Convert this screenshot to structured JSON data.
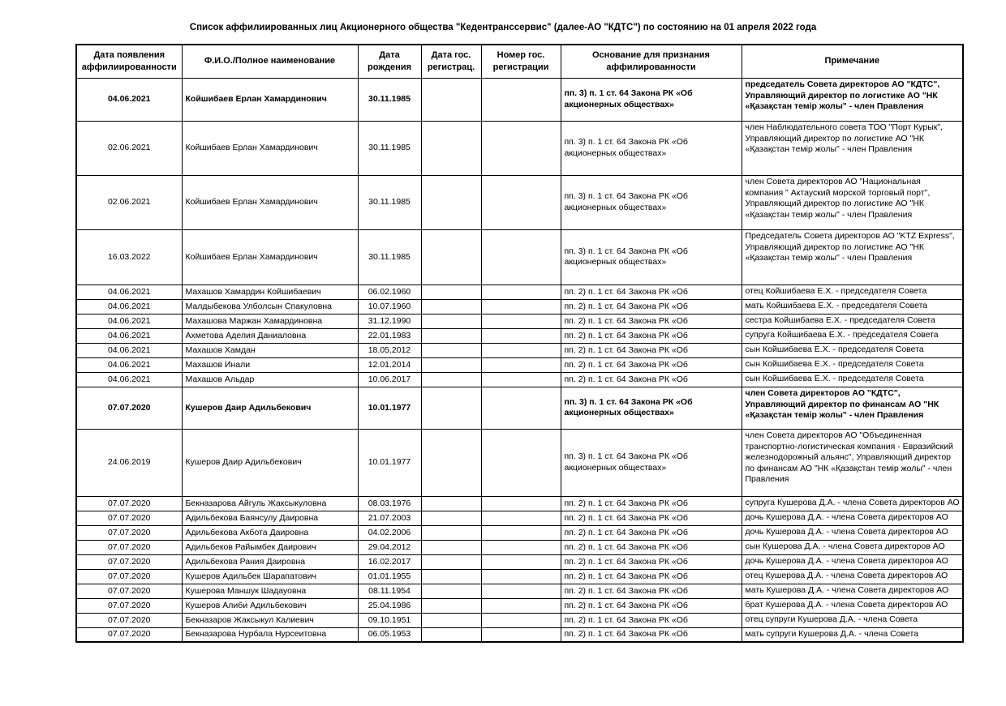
{
  "page": {
    "title": "Список аффилиированных лиц Акционерного общества  \"Кедентранссервис\" (далее-АО \"КДТС\") по состоянию на 01 апреля 2022 года"
  },
  "table": {
    "headers": [
      "Дата появления аффилиированности",
      "Ф.И.О./Полное наименование",
      "Дата рождения",
      "Дата гос. регистрац.",
      "Номер гос. регистрации",
      "Основание для признания аффилированности",
      "Примечание"
    ],
    "rows": [
      {
        "bold": true,
        "cells": [
          "04.06.2021",
          "Койшибаев Ерлан Хамардинович",
          "30.11.1985",
          "",
          "",
          "пп. 3) п. 1 ст. 64 Закона РК  «Об акционерных обществах»",
          "председатель Совета директоров АО \"КДТС\", Управляющий директор по логистике АО \"НК «Қазақстан темір жолы\" - член Правления"
        ]
      },
      {
        "bold": false,
        "cells": [
          "02.06.2021",
          "Койшибаев Ерлан Хамардинович",
          "30.11.1985",
          "",
          "",
          "пп. 3) п. 1 ст. 64 Закона РК  «Об акционерных обществах»",
          "член Наблюдательного совета ТОО \"Порт Курык\", Управляющий директор по логистике АО \"НК «Қазақстан темір жолы\" - член Правления"
        ]
      },
      {
        "bold": false,
        "cells": [
          "02.06.2021",
          "Койшибаев Ерлан Хамардинович",
          "30.11.1985",
          "",
          "",
          "пп. 3) п. 1 ст. 64 Закона РК  «Об акционерных обществах»",
          "член Совета директоров АО \"Национальная компания \" Актауский морской торговый порт\", Управляющий директор по логистике АО \"НК «Қазақстан темір жолы\" - член Правления"
        ]
      },
      {
        "bold": false,
        "cells": [
          "16.03.2022",
          "Койшибаев Ерлан Хамардинович",
          "30.11.1985",
          "",
          "",
          "пп. 3) п. 1 ст. 64 Закона РК  «Об акционерных обществах»",
          "Председатель Совета директоров АО \"KTZ Express\", Управляющий директор по логистике АО \"НК «Қазақстан темір жолы\" - член Правления"
        ]
      },
      {
        "bold": false,
        "cells": [
          "04.06.2021",
          "Махашов Хамардин Койшибаевич",
          "06.02.1960",
          "",
          "",
          "пп. 2) п. 1 ст. 64 Закона РК  «Об",
          "отец Койшибаева Е.Х. - председателя Совета"
        ]
      },
      {
        "bold": false,
        "cells": [
          "04.06.2021",
          "Малдыбекова Улболсын Спакуловна",
          "10.07.1960",
          "",
          "",
          "пп. 2) п. 1 ст. 64 Закона РК  «Об",
          "мать Койшибаева Е.Х. - председателя Совета"
        ]
      },
      {
        "bold": false,
        "cells": [
          "04.06.2021",
          "Махашова Маржан Хамардиновна",
          "31.12.1990",
          "",
          "",
          "пп. 2) п. 1 ст. 64 Закона РК  «Об",
          "сестра Койшибаева Е.Х. - председателя Совета"
        ]
      },
      {
        "bold": false,
        "cells": [
          "04.06.2021",
          "Ахметова Аделия Даниаловна",
          "22.01.1983",
          "",
          "",
          "пп. 2) п. 1 ст. 64 Закона РК  «Об",
          "супруга Койшибаева Е.Х. - председателя Совета"
        ]
      },
      {
        "bold": false,
        "cells": [
          "04.06.2021",
          "Махашов Хамдан",
          "18.05.2012",
          "",
          "",
          "пп. 2) п. 1 ст. 64 Закона РК  «Об",
          "сын Койшибаева Е.Х. - председателя Совета"
        ]
      },
      {
        "bold": false,
        "cells": [
          "04.06.2021",
          "Махашов Инали",
          "12.01.2014",
          "",
          "",
          "пп. 2) п. 1 ст. 64 Закона РК  «Об",
          "сын Койшибаева Е.Х. - председателя Совета"
        ]
      },
      {
        "bold": false,
        "cells": [
          "04.06.2021",
          "Махашов Альдар",
          "10.06.2017",
          "",
          "",
          "пп. 2) п. 1 ст. 64 Закона РК  «Об",
          "сын Койшибаева Е.Х. - председателя Совета"
        ]
      },
      {
        "bold": true,
        "cells": [
          "07.07.2020",
          "Кушеров Даир Адильбекович",
          "10.01.1977",
          "",
          "",
          "пп. 3) п. 1 ст. 64 Закона РК  «Об акционерных обществах»",
          "член Совета директоров АО \"КДТС\", Управляющий директор по финансам АО \"НК «Қазақстан темір жолы\" - член Правления"
        ]
      },
      {
        "bold": false,
        "cells": [
          "24.06.2019",
          "Кушеров Даир Адильбекович",
          "10.01.1977",
          "",
          "",
          "пп. 3) п. 1 ст. 64 Закона РК  «Об акционерных обществах»",
          "член Совета директоров АО \"Объединенная транспортно-логистическая компания - Евразийский железнодорожный альянс\", Управляющий директор по финансам АО \"НК «Қазақстан темір жолы\" - член Правления"
        ]
      },
      {
        "bold": false,
        "cells": [
          "07.07.2020",
          "Бекназарова Айгуль Жаксыкуловна",
          "08.03.1976",
          "",
          "",
          "пп. 2) п. 1 ст. 64 Закона РК  «Об",
          "супруга Кушерова Д.А. - члена Совета директоров АО"
        ]
      },
      {
        "bold": false,
        "cells": [
          "07.07.2020",
          "Адильбекова Баянсулу Даировна",
          "21.07.2003",
          "",
          "",
          "пп. 2) п. 1 ст. 64 Закона РК  «Об",
          "дочь Кушерова Д.А. - члена Совета директоров АО"
        ]
      },
      {
        "bold": false,
        "cells": [
          "07.07.2020",
          "Адильбекова Акбота Даировна",
          "04.02.2006",
          "",
          "",
          "пп. 2) п. 1 ст. 64 Закона РК  «Об",
          "дочь Кушерова Д.А. - члена Совета директоров АО"
        ]
      },
      {
        "bold": false,
        "cells": [
          "07.07.2020",
          "Адильбеков Райымбек Даирович",
          "29.04.2012",
          "",
          "",
          "пп. 2) п. 1 ст. 64 Закона РК  «Об",
          "сын Кушерова Д.А. - члена Совета директоров АО"
        ]
      },
      {
        "bold": false,
        "cells": [
          "07.07.2020",
          "Адильбекова Рания Даировна",
          "16.02.2017",
          "",
          "",
          "пп. 2) п. 1 ст. 64 Закона РК  «Об",
          "дочь Кушерова Д.А. - члена Совета директоров АО"
        ]
      },
      {
        "bold": false,
        "cells": [
          "07.07.2020",
          "Кушеров Адильбек Шарапатович",
          "01.01.1955",
          "",
          "",
          "пп. 2) п. 1 ст. 64 Закона РК  «Об",
          "отец Кушерова Д.А. - члена Совета директоров АО"
        ]
      },
      {
        "bold": false,
        "cells": [
          "07.07.2020",
          "Кушерова Маншук Шадауовна",
          "08.11.1954",
          "",
          "",
          "пп. 2) п. 1 ст. 64 Закона РК  «Об",
          "мать Кушерова Д.А. - члена Совета директоров АО"
        ]
      },
      {
        "bold": false,
        "cells": [
          "07.07.2020",
          "Кушеров Алиби Адильбекович",
          "25.04.1986",
          "",
          "",
          "пп. 2) п. 1 ст. 64 Закона РК  «Об",
          "брат Кушерова Д.А. - члена Совета директоров АО"
        ]
      },
      {
        "bold": false,
        "cells": [
          "07.07.2020",
          "Бекназаров Жаксыкул Калиевич",
          "09.10.1951",
          "",
          "",
          "пп. 2) п. 1 ст. 64 Закона РК  «Об",
          "отец супруги Кушерова Д.А. - члена Совета"
        ]
      },
      {
        "bold": false,
        "cells": [
          "07.07.2020",
          "Бекназарова Нурбала Нурсеитовна",
          "06.05.1953",
          "",
          "",
          "пп. 2) п. 1 ст. 64 Закона РК  «Об",
          "мать супруги Кушерова Д.А. - члена Совета"
        ]
      }
    ]
  }
}
